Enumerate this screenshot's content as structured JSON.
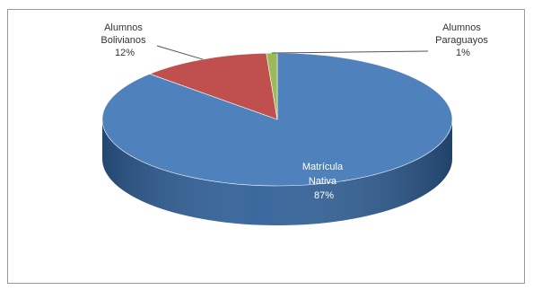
{
  "chart_data": {
    "type": "pie",
    "style": "3d",
    "slices": [
      {
        "name_lines": [
          "Matrícula",
          "Nativa"
        ],
        "percent_label": "87%",
        "value": 87,
        "color": "#4f81bd",
        "side_color": "#2f5f97"
      },
      {
        "name_lines": [
          "Alumnos",
          "Bolivianos"
        ],
        "percent_label": "12%",
        "value": 12,
        "color": "#c0504d",
        "side_color": "#8c2f2c"
      },
      {
        "name_lines": [
          "Alumnos",
          "Paraguayos"
        ],
        "percent_label": "1%",
        "value": 1,
        "color": "#9bbb59",
        "side_color": "#6e8a3a"
      }
    ],
    "legend": "none",
    "data_labels": "outside-with-leader-lines"
  }
}
